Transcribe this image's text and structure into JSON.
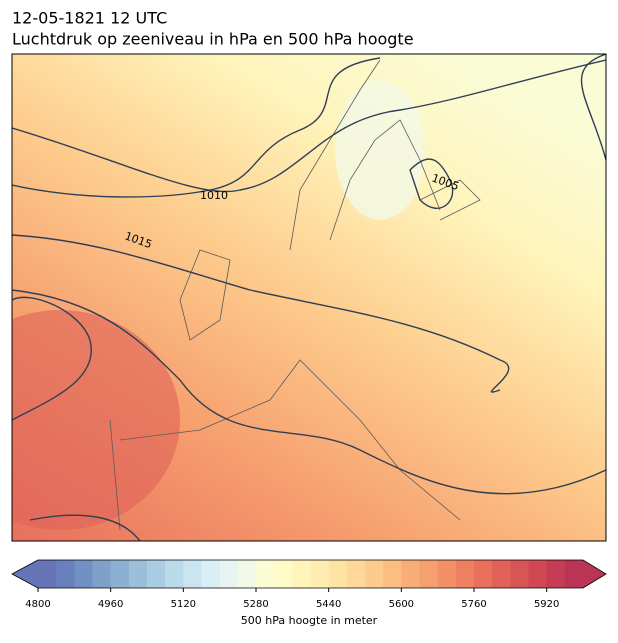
{
  "title": "12-05-1821 12 UTC",
  "subtitle": "Luchtdruk op zeeniveau in hPa en 500 hPa hoogte",
  "map": {
    "contour_labels": [
      "1010",
      "1015",
      "1005"
    ]
  },
  "colorbar": {
    "label": "500 hPa hoogte in meter",
    "range": [
      4800,
      6000
    ],
    "ticks": [
      4800,
      4960,
      5120,
      5280,
      5440,
      5600,
      5760,
      5920
    ],
    "colors": [
      "#6675b8",
      "#6a80bc",
      "#7290c3",
      "#7ea0c9",
      "#8cb0d2",
      "#9bbfda",
      "#aacde3",
      "#badbea",
      "#cae5f0",
      "#daeef5",
      "#e7f4f3",
      "#f2f9e6",
      "#fafcd6",
      "#fffbc8",
      "#fff4bb",
      "#feecb0",
      "#fee3a4",
      "#fdd898",
      "#fdcb8c",
      "#fcbd81",
      "#f9ae78",
      "#f69f6f",
      "#f29068",
      "#ee8062",
      "#e8705c",
      "#e06258",
      "#d85555",
      "#cf4854",
      "#c53d54",
      "#b93553"
    ]
  }
}
